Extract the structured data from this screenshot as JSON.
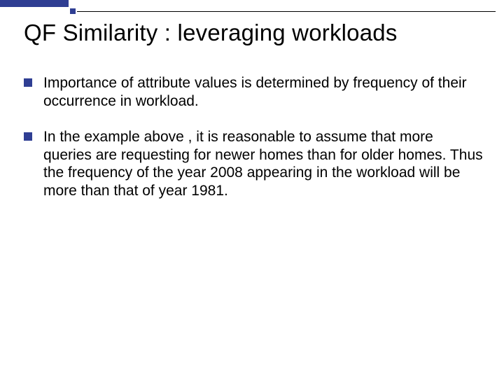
{
  "slide": {
    "title": "QF Similarity : leveraging workloads",
    "bullets": [
      {
        "text": "Importance of attribute values is determined by frequency of their occurrence in workload."
      },
      {
        "text": "In the example above , it is reasonable to assume that more queries are requesting for newer homes than for older homes. Thus the frequency of the year 2008 appearing in the workload will be more than that of year 1981."
      }
    ]
  },
  "style": {
    "accent_color": "#2f3e93",
    "background_color": "#ffffff",
    "title_fontsize": 33,
    "body_fontsize": 21,
    "bullet_marker_size": 12,
    "slide_width": 720,
    "slide_height": 540
  }
}
